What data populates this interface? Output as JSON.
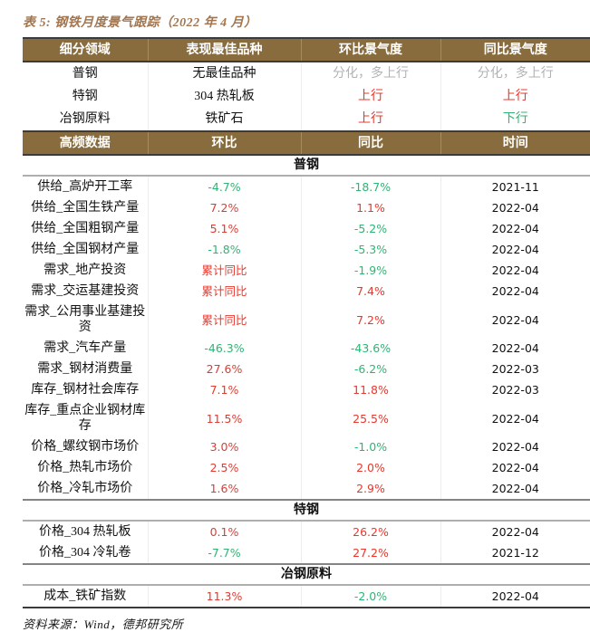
{
  "title": "表 5: 钢铁月度景气跟踪（2022 年 4 月）",
  "colors": {
    "header_brown": "#886C3D",
    "title_brown": "#a2764f",
    "up_red": "#e8382d",
    "down_green": "#2db673",
    "mixed_gray": "#b2b2b2"
  },
  "overview": {
    "headers": [
      "细分领域",
      "表现最佳品种",
      "环比景气度",
      "同比景气度"
    ],
    "rows": [
      {
        "field": "普钢",
        "best": "无最佳品种",
        "mom": {
          "text": "分化，多上行",
          "tone": "gray"
        },
        "yoy": {
          "text": "分化，多上行",
          "tone": "gray"
        }
      },
      {
        "field": "特钢",
        "best": "304 热轧板",
        "mom": {
          "text": "上行",
          "tone": "red"
        },
        "yoy": {
          "text": "上行",
          "tone": "red"
        }
      },
      {
        "field": "冶钢原料",
        "best": "铁矿石",
        "mom": {
          "text": "上行",
          "tone": "red"
        },
        "yoy": {
          "text": "下行",
          "tone": "green"
        }
      }
    ]
  },
  "detail": {
    "headers": [
      "高频数据",
      "环比",
      "同比",
      "时间"
    ],
    "sections": [
      {
        "name": "普钢",
        "rows": [
          {
            "label": "供给_高炉开工率",
            "mom": {
              "text": "-4.7%",
              "tone": "green"
            },
            "yoy": {
              "text": "-18.7%",
              "tone": "green"
            },
            "date": "2021-11"
          },
          {
            "label": "供给_全国生铁产量",
            "mom": {
              "text": "7.2%",
              "tone": "red"
            },
            "yoy": {
              "text": "1.1%",
              "tone": "red"
            },
            "date": "2022-04"
          },
          {
            "label": "供给_全国粗钢产量",
            "mom": {
              "text": "5.1%",
              "tone": "red"
            },
            "yoy": {
              "text": "-5.2%",
              "tone": "green"
            },
            "date": "2022-04"
          },
          {
            "label": "供给_全国钢材产量",
            "mom": {
              "text": "-1.8%",
              "tone": "green"
            },
            "yoy": {
              "text": "-5.3%",
              "tone": "green"
            },
            "date": "2022-04"
          },
          {
            "label": "需求_地产投资",
            "mom": {
              "text": "累计同比",
              "tone": "red"
            },
            "yoy": {
              "text": "-1.9%",
              "tone": "green"
            },
            "date": "2022-04"
          },
          {
            "label": "需求_交运基建投资",
            "mom": {
              "text": "累计同比",
              "tone": "red"
            },
            "yoy": {
              "text": "7.4%",
              "tone": "red"
            },
            "date": "2022-04"
          },
          {
            "label": "需求_公用事业基建投资",
            "mom": {
              "text": "累计同比",
              "tone": "red"
            },
            "yoy": {
              "text": "7.2%",
              "tone": "red"
            },
            "date": "2022-04"
          },
          {
            "label": "需求_汽车产量",
            "mom": {
              "text": "-46.3%",
              "tone": "green"
            },
            "yoy": {
              "text": "-43.6%",
              "tone": "green"
            },
            "date": "2022-04"
          },
          {
            "label": "需求_钢材消费量",
            "mom": {
              "text": "27.6%",
              "tone": "red"
            },
            "yoy": {
              "text": "-6.2%",
              "tone": "green"
            },
            "date": "2022-03"
          },
          {
            "label": "库存_钢材社会库存",
            "mom": {
              "text": "7.1%",
              "tone": "red"
            },
            "yoy": {
              "text": "11.8%",
              "tone": "red"
            },
            "date": "2022-03"
          },
          {
            "label": "库存_重点企业钢材库存",
            "mom": {
              "text": "11.5%",
              "tone": "red"
            },
            "yoy": {
              "text": "25.5%",
              "tone": "red"
            },
            "date": "2022-04"
          },
          {
            "label": "价格_螺纹钢市场价",
            "mom": {
              "text": "3.0%",
              "tone": "red"
            },
            "yoy": {
              "text": "-1.0%",
              "tone": "green"
            },
            "date": "2022-04"
          },
          {
            "label": "价格_热轧市场价",
            "mom": {
              "text": "2.5%",
              "tone": "red"
            },
            "yoy": {
              "text": "2.0%",
              "tone": "red"
            },
            "date": "2022-04"
          },
          {
            "label": "价格_冷轧市场价",
            "mom": {
              "text": "1.6%",
              "tone": "red"
            },
            "yoy": {
              "text": "2.9%",
              "tone": "red"
            },
            "date": "2022-04"
          }
        ]
      },
      {
        "name": "特钢",
        "rows": [
          {
            "label": "价格_304 热轧板",
            "mom": {
              "text": "0.1%",
              "tone": "red"
            },
            "yoy": {
              "text": "26.2%",
              "tone": "red"
            },
            "date": "2022-04"
          },
          {
            "label": "价格_304 冷轧卷",
            "mom": {
              "text": "-7.7%",
              "tone": "green"
            },
            "yoy": {
              "text": "27.2%",
              "tone": "red"
            },
            "date": "2021-12"
          }
        ]
      },
      {
        "name": "冶钢原料",
        "rows": [
          {
            "label": "成本_铁矿指数",
            "mom": {
              "text": "11.3%",
              "tone": "red"
            },
            "yoy": {
              "text": "-2.0%",
              "tone": "green"
            },
            "date": "2022-04"
          }
        ]
      }
    ]
  },
  "footer": "资料来源：Wind，德邦研究所"
}
